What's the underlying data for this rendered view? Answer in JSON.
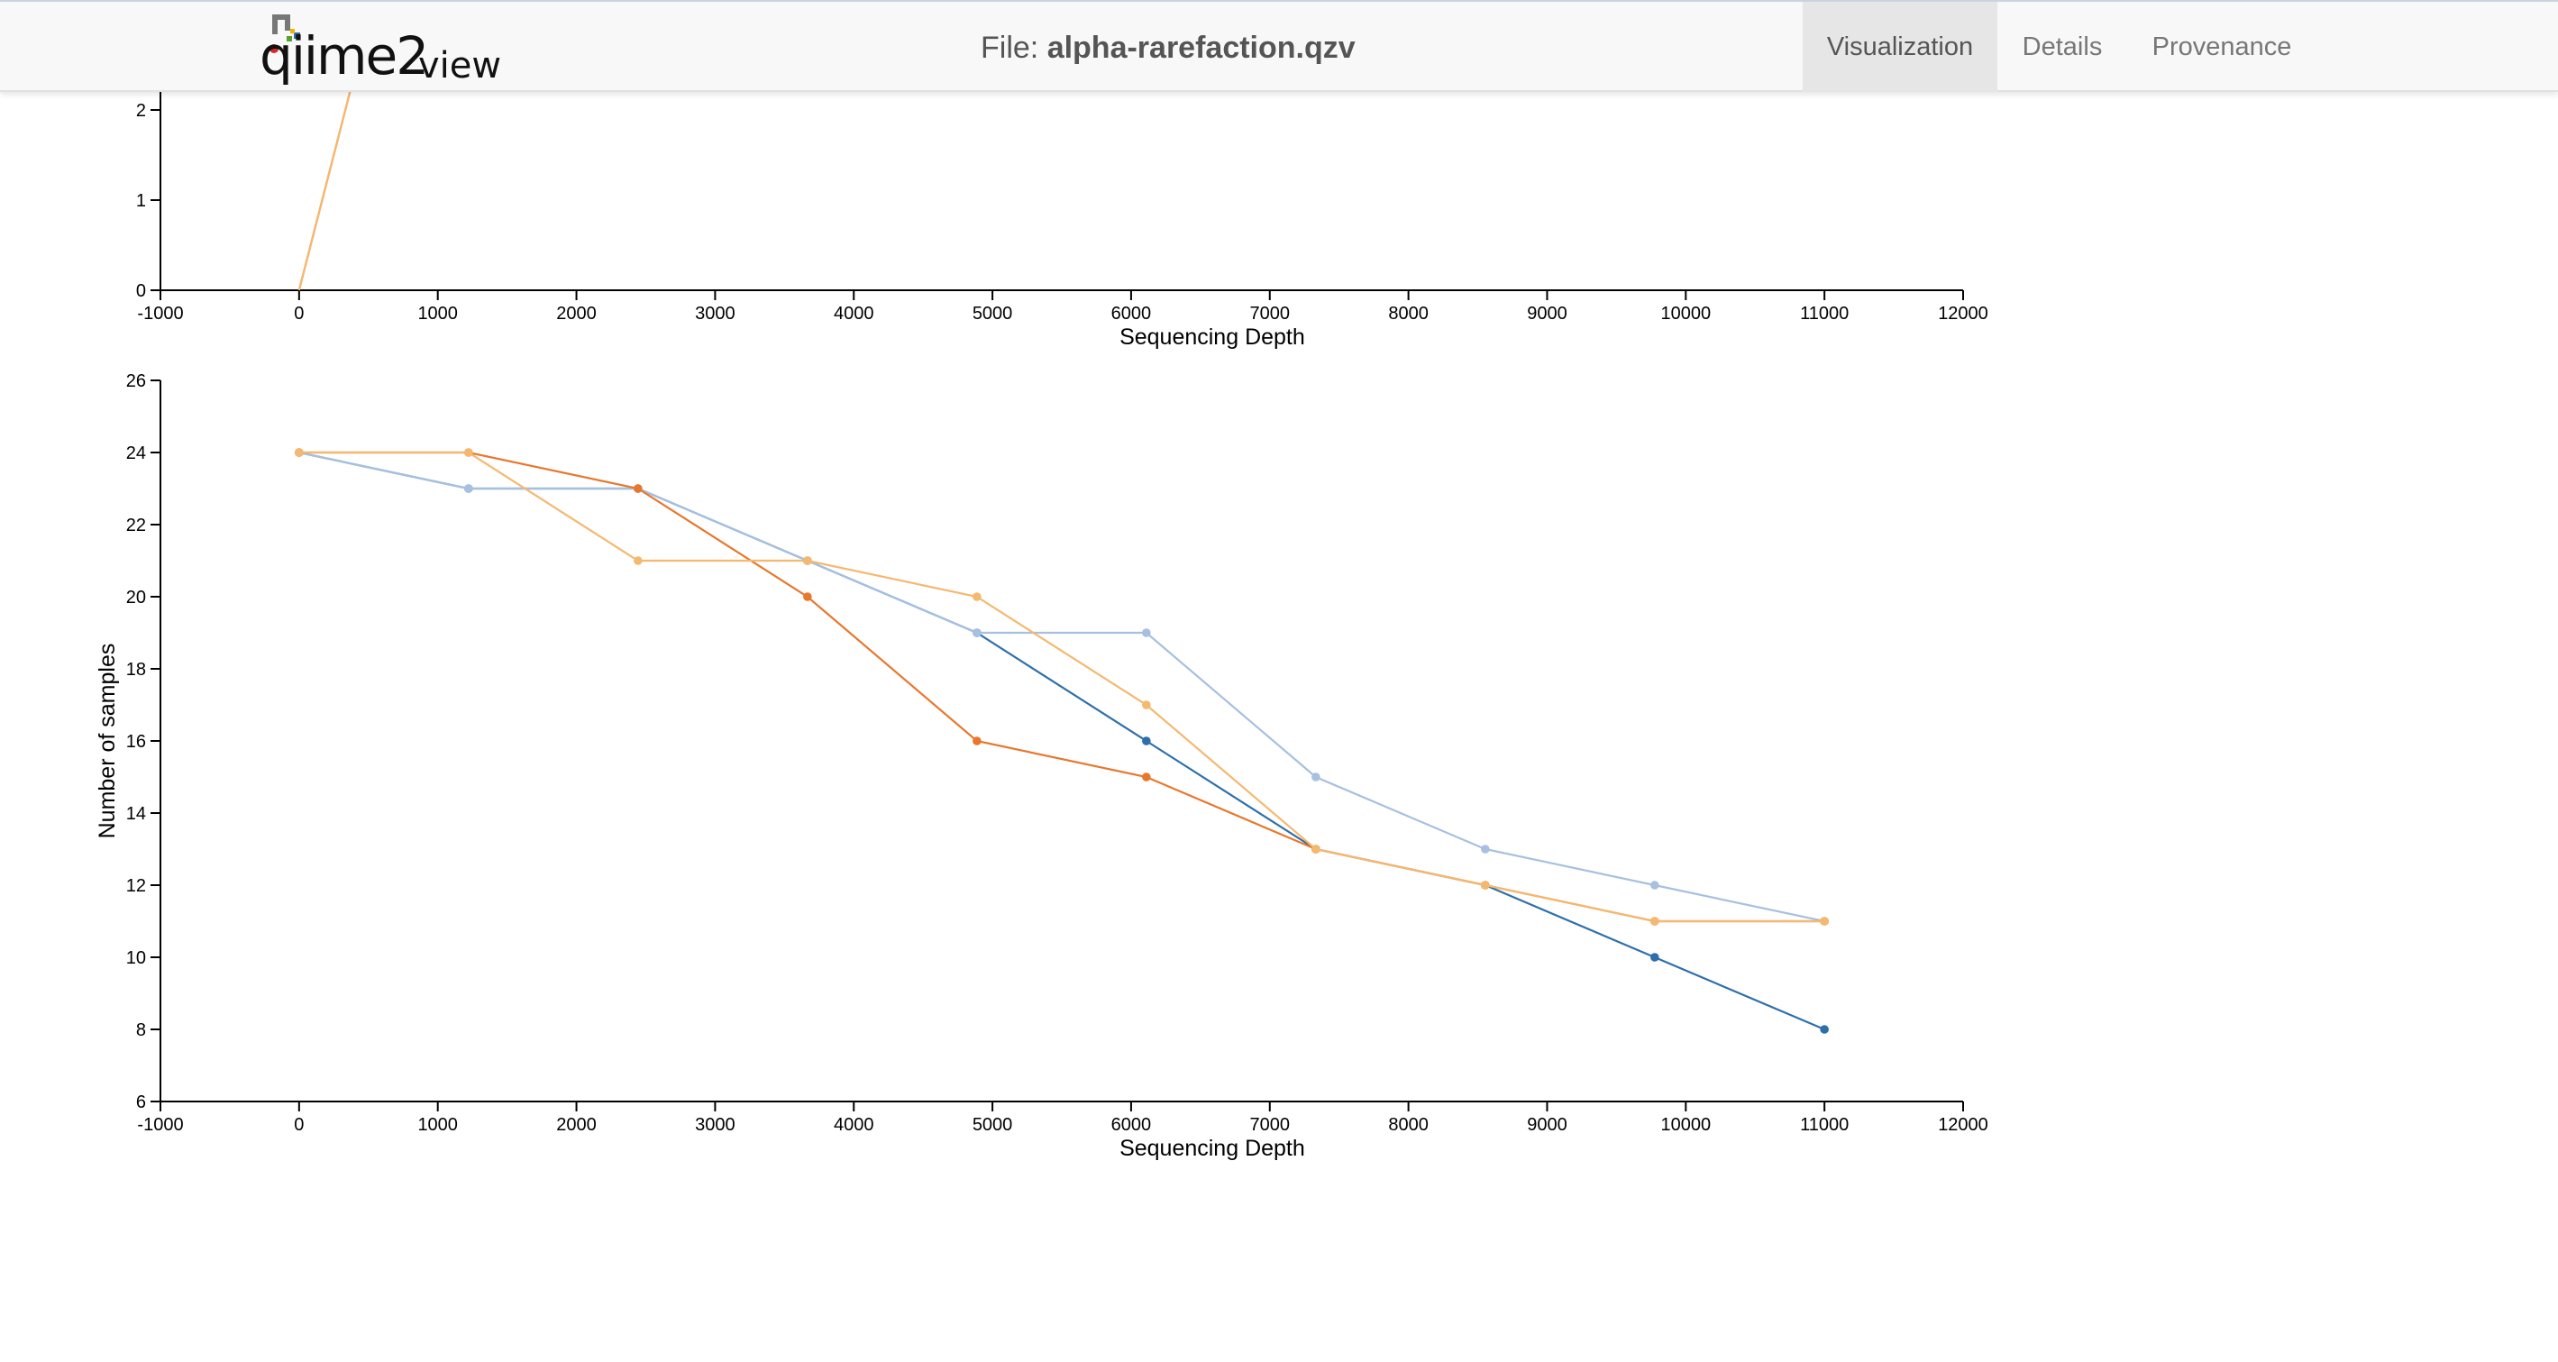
{
  "navbar": {
    "logo_word": "qiime",
    "logo_two": "2",
    "logo_view": "view",
    "file_label": "File:",
    "file_name": "alpha-rarefaction.qzv",
    "tabs": [
      {
        "label": "Visualization",
        "active": true
      },
      {
        "label": "Details",
        "active": false
      },
      {
        "label": "Provenance",
        "active": false
      }
    ]
  },
  "colors": {
    "dark_blue": "#2e6fab",
    "light_blue": "#a7c0e0",
    "dark_orange": "#e8772c",
    "light_orange": "#f5b86f"
  },
  "chart_data": [
    {
      "type": "line",
      "xlabel": "Sequencing Depth",
      "ylabel": "",
      "xlim": [
        -1000,
        12000
      ],
      "xticks": [
        -1000,
        0,
        1000,
        2000,
        3000,
        4000,
        5000,
        6000,
        7000,
        8000,
        9000,
        10000,
        11000,
        12000
      ],
      "yticks_visible": [
        0,
        1,
        2
      ],
      "series": [
        {
          "color": "#e8772c",
          "x": [
            0,
            400
          ],
          "y": [
            0,
            2.4
          ]
        },
        {
          "color": "#f5b86f",
          "x": [
            0,
            400
          ],
          "y": [
            0,
            2.4
          ]
        }
      ]
    },
    {
      "type": "line",
      "xlabel": "Sequencing Depth",
      "ylabel": "Number of samples",
      "xlim": [
        -1000,
        12000
      ],
      "ylim": [
        6,
        26
      ],
      "xticks": [
        -1000,
        0,
        1000,
        2000,
        3000,
        4000,
        5000,
        6000,
        7000,
        8000,
        9000,
        10000,
        11000,
        12000
      ],
      "yticks": [
        6,
        8,
        10,
        12,
        14,
        16,
        18,
        20,
        22,
        24,
        26
      ],
      "series": [
        {
          "color": "#2e6fab",
          "x": [
            0,
            1222,
            2444,
            3666,
            4888,
            6110,
            7332,
            8554,
            9776,
            11000
          ],
          "y": [
            24,
            23,
            23,
            21,
            19,
            16,
            13,
            12,
            10,
            8
          ]
        },
        {
          "color": "#a7c0e0",
          "x": [
            0,
            1222,
            2444,
            3666,
            4888,
            6110,
            7332,
            8554,
            9776,
            11000
          ],
          "y": [
            24,
            23,
            23,
            21,
            19,
            19,
            15,
            13,
            12,
            11
          ]
        },
        {
          "color": "#e8772c",
          "x": [
            0,
            1222,
            2444,
            3666,
            4888,
            6110,
            7332,
            8554,
            9776,
            11000
          ],
          "y": [
            24,
            24,
            23,
            20,
            16,
            15,
            13,
            12,
            11,
            11
          ]
        },
        {
          "color": "#f5b86f",
          "x": [
            0,
            1222,
            2444,
            3666,
            4888,
            6110,
            7332,
            8554,
            9776,
            11000
          ],
          "y": [
            24,
            24,
            21,
            21,
            20,
            17,
            13,
            12,
            11,
            11
          ]
        }
      ]
    }
  ]
}
